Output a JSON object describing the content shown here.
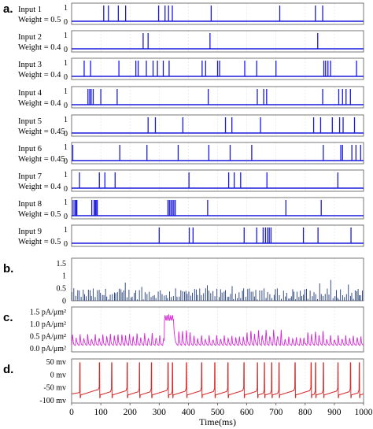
{
  "chart_data": [
    {
      "type": "line",
      "panel_label": "a.",
      "series": [
        {
          "name": "Input 1",
          "weight_label": "Weight = 0.5",
          "yticks": [
            "0",
            "1"
          ],
          "spikes_ms": [
            110,
            126,
            160,
            185,
            298,
            320,
            332,
            345,
            478,
            713,
            835,
            860
          ]
        },
        {
          "name": "Input 2",
          "weight_label": "Weight = 0.4",
          "yticks": [
            "0",
            "1"
          ],
          "spikes_ms": [
            245,
            262,
            474,
            843
          ]
        },
        {
          "name": "Input 3",
          "weight_label": "Weight = 0.4",
          "yticks": [
            "0",
            "1"
          ],
          "spikes_ms": [
            43,
            65,
            162,
            220,
            228,
            256,
            279,
            294,
            314,
            334,
            447,
            459,
            500,
            507,
            593,
            634,
            700,
            864,
            870,
            878,
            887,
            976
          ]
        },
        {
          "name": "Input 4",
          "weight_label": "Weight = 0.4",
          "yticks": [
            "0",
            "1"
          ],
          "spikes_ms": [
            56,
            62,
            67,
            74,
            100,
            156,
            468,
            636,
            658,
            668,
            860,
            915,
            928,
            940,
            955
          ]
        },
        {
          "name": "Input 5",
          "weight_label": "Weight = 0.45",
          "yticks": [
            "0",
            "1"
          ],
          "spikes_ms": [
            262,
            287,
            381,
            527,
            549,
            647,
            829,
            853,
            893,
            918,
            930,
            969
          ]
        },
        {
          "name": "Input 6",
          "weight_label": "Weight = 0.45",
          "yticks": [
            "0",
            "1"
          ],
          "spikes_ms": [
            4,
            165,
            258,
            365,
            470,
            543,
            617,
            862,
            922,
            928,
            960,
            974,
            990
          ]
        },
        {
          "name": "Input 7",
          "weight_label": "Weight = 0.4",
          "yticks": [
            "0",
            "1"
          ],
          "spikes_ms": [
            27,
            95,
            114,
            149,
            402,
            538,
            557,
            579,
            669,
            912
          ]
        },
        {
          "name": "Input 8",
          "weight_label": "Weight = 0.5",
          "yticks": [
            "0",
            "1"
          ],
          "spikes_ms": [
            5,
            11,
            15,
            18,
            69,
            77,
            81,
            84,
            88,
            330,
            335,
            340,
            345,
            350,
            355,
            466,
            734,
            855
          ]
        },
        {
          "name": "Input 9",
          "weight_label": "Weight = 0.5",
          "yticks": [
            "0",
            "1"
          ],
          "spikes_ms": [
            300,
            403,
            416,
            591,
            634,
            656,
            664,
            671,
            677,
            683,
            794,
            844,
            957
          ]
        }
      ],
      "ylim": [
        0,
        1.2
      ]
    },
    {
      "type": "line",
      "panel_label": "b.",
      "yticks": [
        "0",
        "0.5",
        "1",
        "1.5"
      ],
      "ylim": [
        0,
        1.7
      ],
      "ytick_values": [
        0,
        0.5,
        1,
        1.5
      ],
      "bursts": [
        [
          0,
          250,
          0.85
        ],
        [
          250,
          400,
          1.25
        ],
        [
          400,
          620,
          0.85
        ],
        [
          620,
          700,
          1.1
        ],
        [
          700,
          1000,
          0.85
        ]
      ]
    },
    {
      "type": "line",
      "panel_label": "c.",
      "yticks": [
        "0.0 pA/μm²",
        "0.5 pA/μm²",
        "1.0 pA/μm²",
        "1.5 pA/μm²"
      ],
      "ytick_values": [
        0,
        0.5,
        1.0,
        1.5
      ],
      "ylim": [
        -0.15,
        1.7
      ],
      "baseline": 0.12,
      "big_burst": {
        "start": 318,
        "end": 348,
        "level": 1.4
      },
      "burst_groups": [
        [
          0,
          110,
          0.5
        ],
        [
          110,
          300,
          0.55
        ],
        [
          360,
          410,
          0.75
        ],
        [
          410,
          600,
          0.45
        ],
        [
          600,
          720,
          0.7
        ],
        [
          720,
          800,
          0.4
        ],
        [
          800,
          870,
          0.65
        ],
        [
          870,
          1000,
          0.45
        ]
      ]
    },
    {
      "type": "line",
      "panel_label": "d.",
      "yticks": [
        "50 mv",
        "0 mv",
        "-50 mv",
        "-100 mv"
      ],
      "ytick_values": [
        50,
        0,
        -50,
        -100
      ],
      "ylim": [
        -110,
        60
      ],
      "rest_mv": -75,
      "peak_mv": 45,
      "spike_times_ms": [
        28,
        95,
        137,
        190,
        232,
        273,
        330,
        345,
        393,
        445,
        490,
        535,
        590,
        636,
        660,
        685,
        710,
        765,
        820,
        835,
        862,
        912,
        955,
        985
      ],
      "xlabel": "Time(ms)",
      "xlim": [
        0,
        1000
      ],
      "xticks": [
        "0",
        "100",
        "200",
        "300",
        "400",
        "500",
        "600",
        "700",
        "800",
        "900",
        "1000"
      ]
    }
  ]
}
